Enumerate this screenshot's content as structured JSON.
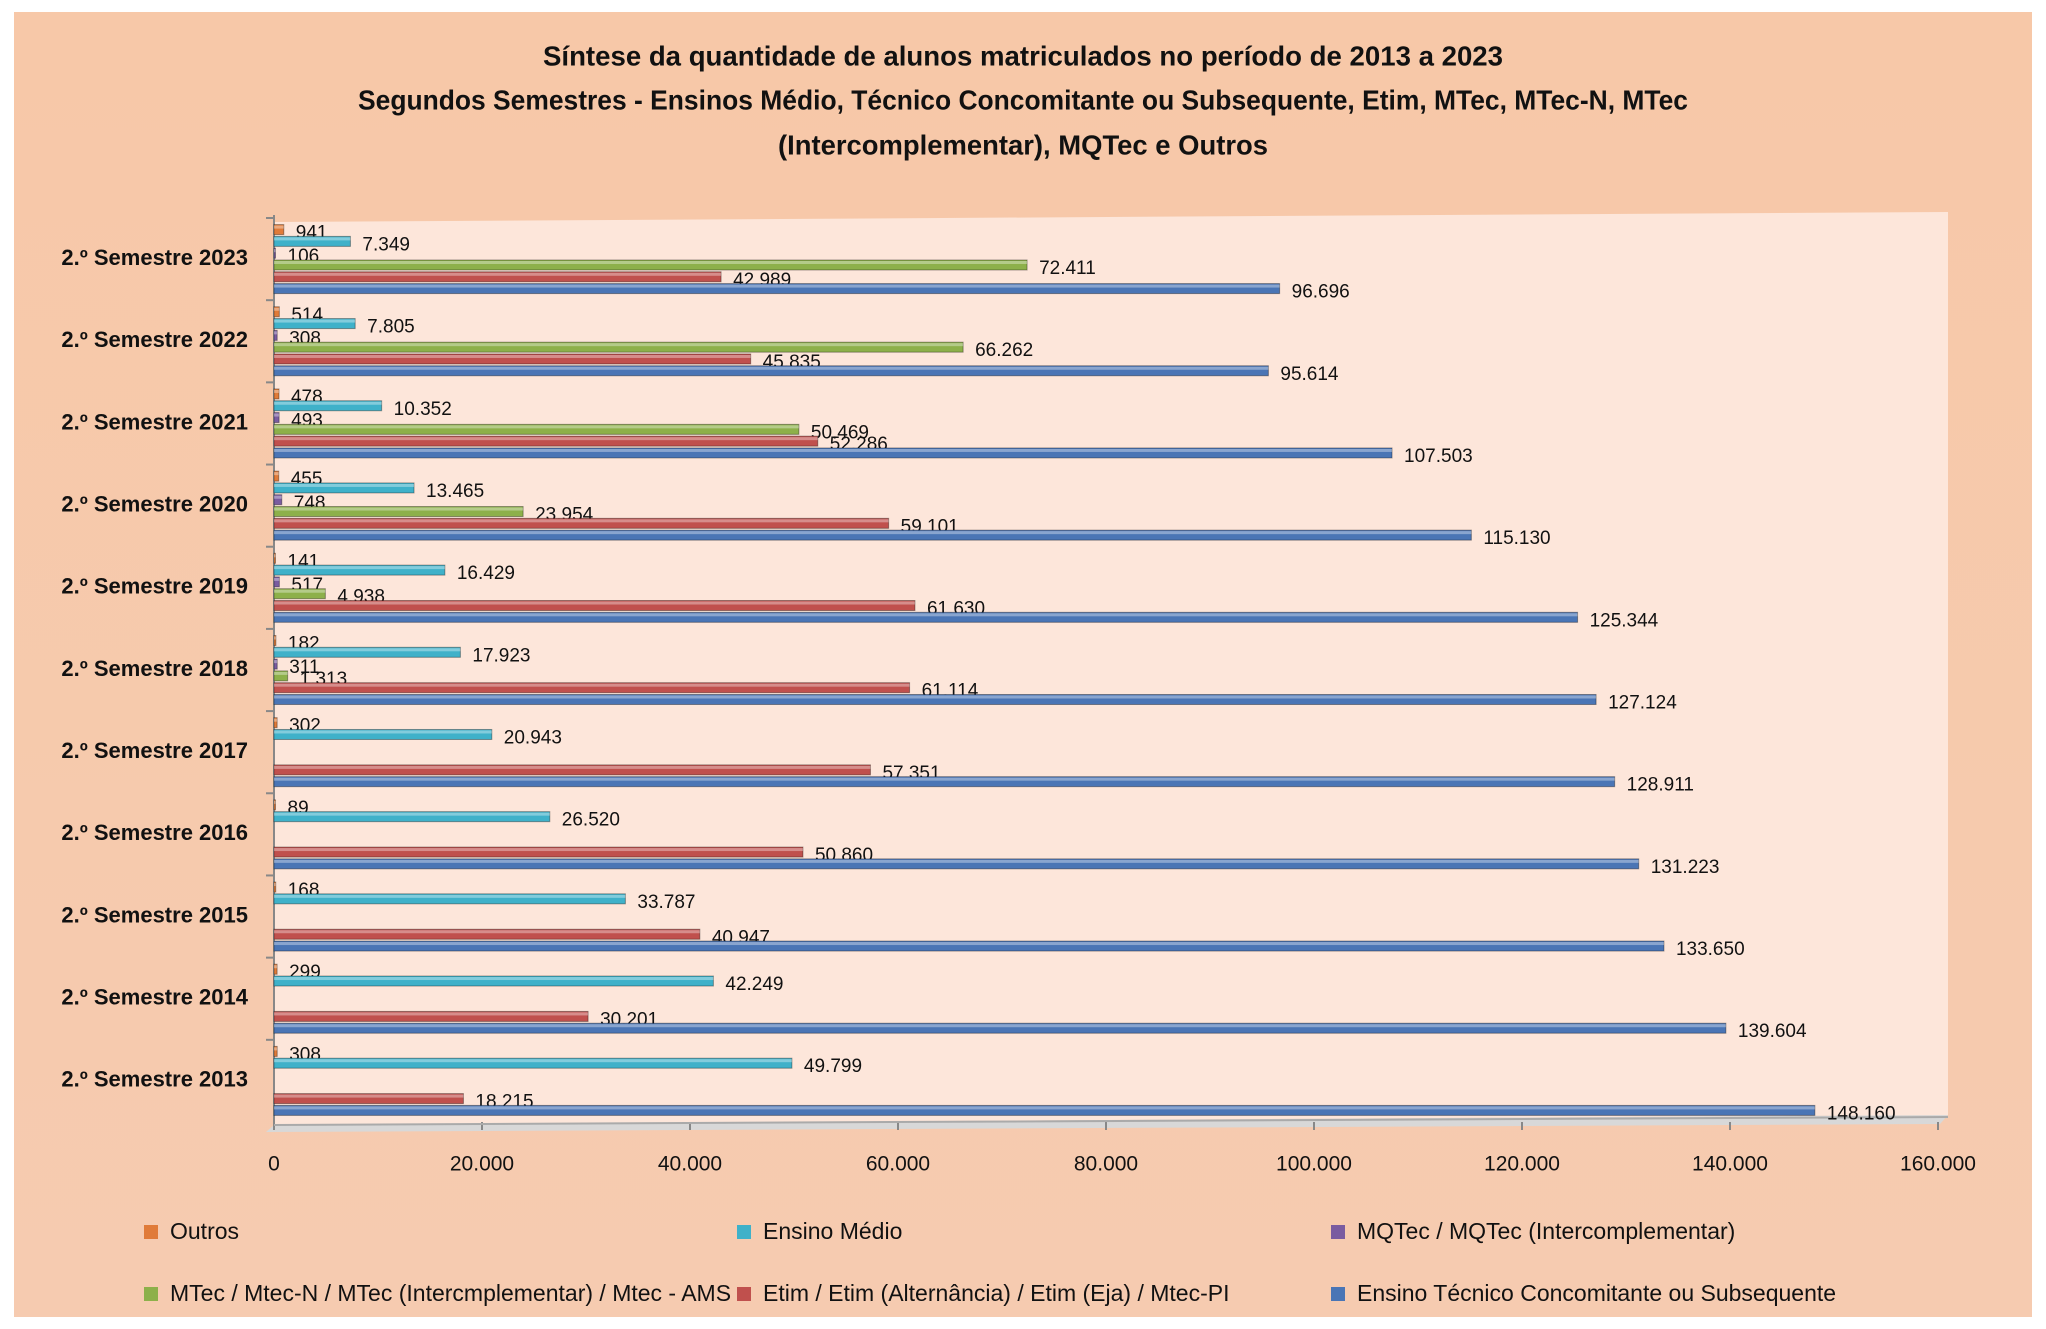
{
  "chart_data": {
    "type": "barh",
    "title": "Síntese da quantidade de alunos matriculados no período de 2013 a 2023",
    "subtitle": [
      "Segundos Semestres - Ensinos Médio, Técnico Concomitante ou Subsequente, Etim, MTec, MTec-N, MTec",
      "(Intercomplementar), MQTec e Outros"
    ],
    "categories": [
      "2.º Semestre 2023",
      "2.º Semestre 2022",
      "2.º Semestre 2021",
      "2.º Semestre 2020",
      "2.º Semestre 2019",
      "2.º Semestre 2018",
      "2.º Semestre 2017",
      "2.º Semestre 2016",
      "2.º Semestre 2015",
      "2.º Semestre 2014",
      "2.º Semestre 2013"
    ],
    "series": [
      {
        "name": "Outros",
        "color": "#e07b39",
        "values": [
          941,
          514,
          478,
          455,
          141,
          182,
          302,
          89,
          168,
          299,
          308
        ],
        "value_labels": [
          "941",
          "514",
          "478",
          "455",
          "141",
          "182",
          "302",
          "89",
          "168",
          "299",
          "308"
        ]
      },
      {
        "name": "Ensino Médio",
        "color": "#3fb1c9",
        "values": [
          7349,
          7805,
          10352,
          13465,
          16429,
          17923,
          20943,
          26520,
          33787,
          42249,
          49799
        ],
        "value_labels": [
          "7.349",
          "7.805",
          "10.352",
          "13.465",
          "16.429",
          "17.923",
          "20.943",
          "26.520",
          "33.787",
          "42.249",
          "49.799"
        ]
      },
      {
        "name": "MQTec / MQTec (Intercomplementar)",
        "color": "#7a5ca0",
        "values": [
          106,
          308,
          493,
          748,
          517,
          311,
          null,
          null,
          null,
          null,
          null
        ],
        "value_labels": [
          "106",
          "308",
          "493",
          "748",
          "517",
          "311",
          null,
          null,
          null,
          null,
          null
        ]
      },
      {
        "name": "MTec  / Mtec-N / MTec (Intercmplementar) / Mtec - AMS",
        "color": "#8db04a",
        "values": [
          72411,
          66262,
          50469,
          23954,
          4938,
          1313,
          null,
          null,
          null,
          null,
          null
        ],
        "value_labels": [
          "72.411",
          "66.262",
          "50.469",
          "23.954",
          "4.938",
          "1.313",
          null,
          null,
          null,
          null,
          null
        ]
      },
      {
        "name": "Etim / Etim (Alternância) / Etim (Eja) / Mtec-PI",
        "color": "#c0504d",
        "values": [
          42989,
          45835,
          52286,
          59101,
          61630,
          61114,
          57351,
          50860,
          40947,
          30201,
          18215
        ],
        "value_labels": [
          "42.989",
          "45.835",
          "52.286",
          "59.101",
          "61.630",
          "61.114",
          "57.351",
          "50.860",
          "40.947",
          "30.201",
          "18.215"
        ]
      },
      {
        "name": "Ensino Técnico Concomitante ou Subsequente",
        "color": "#4a75b5",
        "values": [
          96696,
          95614,
          107503,
          115130,
          125344,
          127124,
          128911,
          131223,
          133650,
          139604,
          148160
        ],
        "value_labels": [
          "96.696",
          "95.614",
          "107.503",
          "115.130",
          "125.344",
          "127.124",
          "128.911",
          "131.223",
          "133.650",
          "139.604",
          "148.160"
        ]
      }
    ],
    "xlim": [
      0,
      160000
    ],
    "xticks": [
      0,
      {
        "value": 20000,
        "label": "20.000"
      },
      {
        "value": 40000,
        "label": "40.000"
      },
      {
        "value": 60000,
        "label": "60.000"
      },
      {
        "value": 80000,
        "label": "80.000"
      },
      {
        "value": 100000,
        "label": "100.000"
      },
      {
        "value": 120000,
        "label": "120.000"
      },
      {
        "value": 140000,
        "label": "140.000"
      },
      {
        "value": 160000,
        "label": "160.000"
      }
    ],
    "legend": "bottom"
  }
}
